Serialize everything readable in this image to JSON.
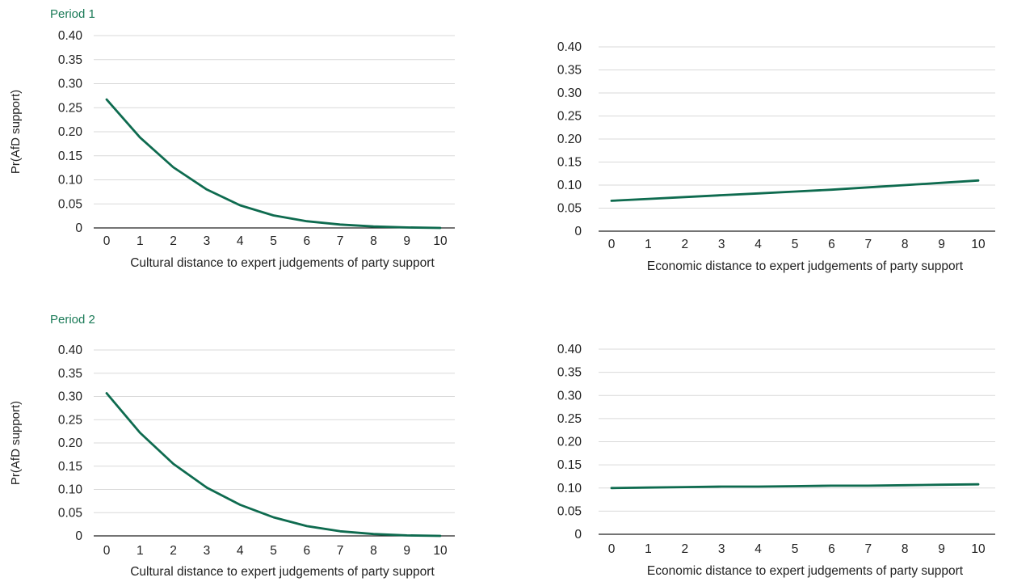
{
  "periods": [
    "Period 1",
    "Period 2"
  ],
  "ylabel": "Pr(AfD support)",
  "series_color": "#0e6b4f",
  "chart_data": [
    {
      "type": "line",
      "period": "Period 1",
      "xlabel": "Cultural distance to expert judgements of party support",
      "ylabel": "Pr(AfD support)",
      "x": [
        0,
        1,
        2,
        3,
        4,
        5,
        6,
        7,
        8,
        9,
        10
      ],
      "y": [
        0.267,
        0.188,
        0.126,
        0.08,
        0.047,
        0.026,
        0.014,
        0.007,
        0.003,
        0.001,
        0.0
      ],
      "xticks": [
        "0",
        "1",
        "2",
        "3",
        "4",
        "5",
        "6",
        "7",
        "8",
        "9",
        "10"
      ],
      "yticks": [
        "0",
        "0.05",
        "0.10",
        "0.15",
        "0.20",
        "0.25",
        "0.30",
        "0.35",
        "0.40"
      ],
      "ylim": [
        0,
        0.4
      ],
      "grid": true
    },
    {
      "type": "line",
      "period": "Period 1",
      "xlabel": "Economic distance to expert judgements of party support",
      "ylabel": "",
      "x": [
        0,
        1,
        2,
        3,
        4,
        5,
        6,
        7,
        8,
        9,
        10
      ],
      "y": [
        0.066,
        0.07,
        0.074,
        0.078,
        0.082,
        0.086,
        0.09,
        0.095,
        0.1,
        0.105,
        0.11
      ],
      "xticks": [
        "0",
        "1",
        "2",
        "3",
        "4",
        "5",
        "6",
        "7",
        "8",
        "9",
        "10"
      ],
      "yticks": [
        "0",
        "0.05",
        "0.10",
        "0.15",
        "0.20",
        "0.25",
        "0.30",
        "0.35",
        "0.40"
      ],
      "ylim": [
        0,
        0.4
      ],
      "grid": true
    },
    {
      "type": "line",
      "period": "Period 2",
      "xlabel": "Cultural distance to expert judgements of party support",
      "ylabel": "Pr(AfD support)",
      "x": [
        0,
        1,
        2,
        3,
        4,
        5,
        6,
        7,
        8,
        9,
        10
      ],
      "y": [
        0.307,
        0.222,
        0.155,
        0.104,
        0.067,
        0.04,
        0.021,
        0.01,
        0.004,
        0.001,
        0.0
      ],
      "xticks": [
        "0",
        "1",
        "2",
        "3",
        "4",
        "5",
        "6",
        "7",
        "8",
        "9",
        "10"
      ],
      "yticks": [
        "0",
        "0.05",
        "0.10",
        "0.15",
        "0.20",
        "0.25",
        "0.30",
        "0.35",
        "0.40"
      ],
      "ylim": [
        0,
        0.4
      ],
      "grid": true
    },
    {
      "type": "line",
      "period": "Period 2",
      "xlabel": "Economic distance to expert judgements of party support",
      "ylabel": "",
      "x": [
        0,
        1,
        2,
        3,
        4,
        5,
        6,
        7,
        8,
        9,
        10
      ],
      "y": [
        0.1,
        0.101,
        0.102,
        0.103,
        0.103,
        0.104,
        0.105,
        0.105,
        0.106,
        0.107,
        0.108
      ],
      "xticks": [
        "0",
        "1",
        "2",
        "3",
        "4",
        "5",
        "6",
        "7",
        "8",
        "9",
        "10"
      ],
      "yticks": [
        "0",
        "0.05",
        "0.10",
        "0.15",
        "0.20",
        "0.25",
        "0.30",
        "0.35",
        "0.40"
      ],
      "ylim": [
        0,
        0.4
      ],
      "grid": true
    }
  ]
}
